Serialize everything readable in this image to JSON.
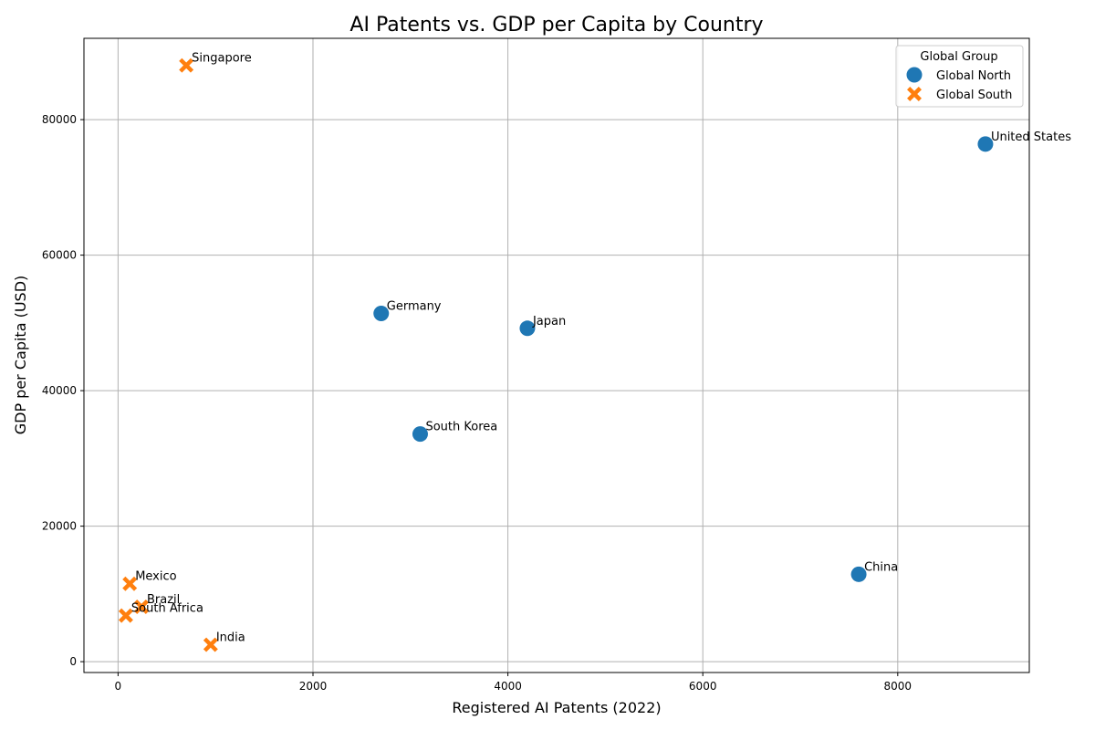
{
  "chart_data": {
    "type": "scatter",
    "title": "AI Patents vs. GDP per Capita by Country",
    "xlabel": "Registered AI Patents (2022)",
    "ylabel": "GDP per Capita (USD)",
    "xlim": [
      -350,
      9350
    ],
    "ylim": [
      -1600,
      92000
    ],
    "xticks": [
      0,
      2000,
      4000,
      6000,
      8000
    ],
    "yticks": [
      0,
      20000,
      40000,
      60000,
      80000
    ],
    "grid": true,
    "legend": {
      "title": "Global Group",
      "placement": "top-right",
      "entries": [
        {
          "label": "Global North",
          "marker": "circle",
          "color": "#1f77b4"
        },
        {
          "label": "Global South",
          "marker": "x",
          "color": "#ff7f0e"
        }
      ]
    },
    "series": [
      {
        "name": "Global North",
        "marker": "circle",
        "color": "#1f77b4",
        "points": [
          {
            "label": "United States",
            "x": 8900,
            "y": 76400
          },
          {
            "label": "Germany",
            "x": 2700,
            "y": 51400
          },
          {
            "label": "Japan",
            "x": 4200,
            "y": 49200
          },
          {
            "label": "South Korea",
            "x": 3100,
            "y": 33600
          },
          {
            "label": "China",
            "x": 7600,
            "y": 12900
          }
        ]
      },
      {
        "name": "Global South",
        "marker": "x",
        "color": "#ff7f0e",
        "points": [
          {
            "label": "Singapore",
            "x": 700,
            "y": 88000
          },
          {
            "label": "Mexico",
            "x": 120,
            "y": 11500
          },
          {
            "label": "Brazil",
            "x": 240,
            "y": 8100
          },
          {
            "label": "South Africa",
            "x": 80,
            "y": 6800
          },
          {
            "label": "India",
            "x": 950,
            "y": 2500
          }
        ]
      }
    ]
  }
}
